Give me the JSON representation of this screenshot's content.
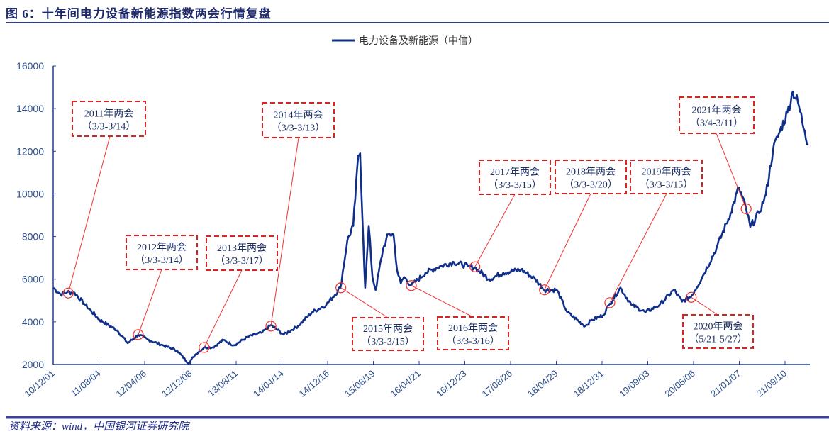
{
  "title": "图 6：十年间电力设备新能源指数两会行情复盘",
  "source": "资料来源：wind，中国银河证券研究院",
  "chart_data": {
    "type": "line",
    "title": "图 6：十年间电力设备新能源指数两会行情复盘",
    "legend": [
      "电力设备及新能源（中信）"
    ],
    "legend_position": "top-center",
    "xlabel": "",
    "ylabel": "",
    "x_tick_labels": [
      "10/12/01",
      "11/08/04",
      "12/04/06",
      "12/12/08",
      "13/08/11",
      "14/04/14",
      "14/12/16",
      "15/08/19",
      "16/04/21",
      "16/12/23",
      "17/08/26",
      "18/04/29",
      "18/12/31",
      "19/09/03",
      "20/05/06",
      "21/01/07",
      "21/09/10"
    ],
    "y_ticks": [
      2000,
      4000,
      6000,
      8000,
      10000,
      12000,
      14000,
      16000
    ],
    "ylim": [
      2000,
      16000
    ],
    "grid": false,
    "color": "#0f2f8a",
    "series": [
      {
        "name": "电力设备及新能源（中信）",
        "x_unit": "x tick index (0 = 10/12/01)",
        "points": [
          [
            0,
            5600
          ],
          [
            0.16,
            5300
          ],
          [
            0.31,
            5400
          ],
          [
            0.47,
            5360
          ],
          [
            0.7,
            4800
          ],
          [
            1.01,
            4100
          ],
          [
            1.4,
            3600
          ],
          [
            1.63,
            3000
          ],
          [
            1.86,
            3400
          ],
          [
            2.09,
            3150
          ],
          [
            2.4,
            2900
          ],
          [
            2.71,
            2650
          ],
          [
            2.96,
            2050
          ],
          [
            3.1,
            2450
          ],
          [
            3.3,
            2800
          ],
          [
            3.49,
            2800
          ],
          [
            3.72,
            3150
          ],
          [
            3.95,
            2900
          ],
          [
            4.26,
            3300
          ],
          [
            4.57,
            3500
          ],
          [
            4.76,
            3850
          ],
          [
            5.04,
            3400
          ],
          [
            5.35,
            3800
          ],
          [
            5.66,
            4450
          ],
          [
            5.97,
            4800
          ],
          [
            6.28,
            5600
          ],
          [
            6.43,
            7800
          ],
          [
            6.56,
            8500
          ],
          [
            6.67,
            11800
          ],
          [
            6.71,
            11900
          ],
          [
            6.78,
            7800
          ],
          [
            6.82,
            5600
          ],
          [
            6.9,
            8500
          ],
          [
            6.98,
            6100
          ],
          [
            7.05,
            5500
          ],
          [
            7.21,
            7400
          ],
          [
            7.33,
            8100
          ],
          [
            7.44,
            8100
          ],
          [
            7.52,
            6400
          ],
          [
            7.6,
            5800
          ],
          [
            7.67,
            6100
          ],
          [
            7.83,
            5700
          ],
          [
            8.14,
            6300
          ],
          [
            8.45,
            6600
          ],
          [
            8.76,
            6800
          ],
          [
            9.07,
            6600
          ],
          [
            9.22,
            6550
          ],
          [
            9.53,
            6000
          ],
          [
            9.84,
            6300
          ],
          [
            10.23,
            6450
          ],
          [
            10.54,
            6000
          ],
          [
            10.74,
            5500
          ],
          [
            11.01,
            5500
          ],
          [
            11.24,
            4450
          ],
          [
            11.63,
            3800
          ],
          [
            11.78,
            4100
          ],
          [
            12.02,
            4300
          ],
          [
            12.17,
            4850
          ],
          [
            12.4,
            5600
          ],
          [
            12.64,
            4800
          ],
          [
            12.95,
            4450
          ],
          [
            13.26,
            4800
          ],
          [
            13.57,
            5500
          ],
          [
            13.75,
            4950
          ],
          [
            13.95,
            5200
          ],
          [
            14.19,
            6100
          ],
          [
            14.5,
            7450
          ],
          [
            14.81,
            9100
          ],
          [
            14.99,
            10300
          ],
          [
            15.15,
            9300
          ],
          [
            15.24,
            8450
          ],
          [
            15.43,
            9100
          ],
          [
            15.58,
            9950
          ],
          [
            15.74,
            12100
          ],
          [
            15.89,
            12950
          ],
          [
            16.05,
            13800
          ],
          [
            16.17,
            14800
          ],
          [
            16.28,
            14300
          ],
          [
            16.43,
            12950
          ],
          [
            16.51,
            12300
          ]
        ]
      }
    ],
    "annotations": [
      {
        "line1": "2011年两会",
        "line2": "（3/3-3/14）",
        "x": 0.33,
        "y": 5350
      },
      {
        "line1": "2012年两会",
        "line2": "（3/3-3/14）",
        "x": 1.86,
        "y": 3400
      },
      {
        "line1": "2013年两会",
        "line2": "（3/3-3/17）",
        "x": 3.3,
        "y": 2800
      },
      {
        "line1": "2014年两会",
        "line2": "（3/3-3/13）",
        "x": 4.76,
        "y": 3800
      },
      {
        "line1": "2015年两会",
        "line2": "（3/3-3/15）",
        "x": 6.29,
        "y": 5600
      },
      {
        "line1": "2016年两会",
        "line2": "（3/3-3/16）",
        "x": 7.83,
        "y": 5700
      },
      {
        "line1": "2017年两会",
        "line2": "（3/3-3/15）",
        "x": 9.22,
        "y": 6580
      },
      {
        "line1": "2018年两会",
        "line2": "（3/3-3/20）",
        "x": 10.74,
        "y": 5500
      },
      {
        "line1": "2019年两会",
        "line2": "（3/3-3/15）",
        "x": 12.17,
        "y": 4900
      },
      {
        "line1": "2020年两会",
        "line2": "（5/21-5/27）",
        "x": 13.95,
        "y": 5150
      },
      {
        "line1": "2021年两会",
        "line2": "（3/4-3/11）",
        "x": 15.15,
        "y": 9300
      }
    ]
  }
}
